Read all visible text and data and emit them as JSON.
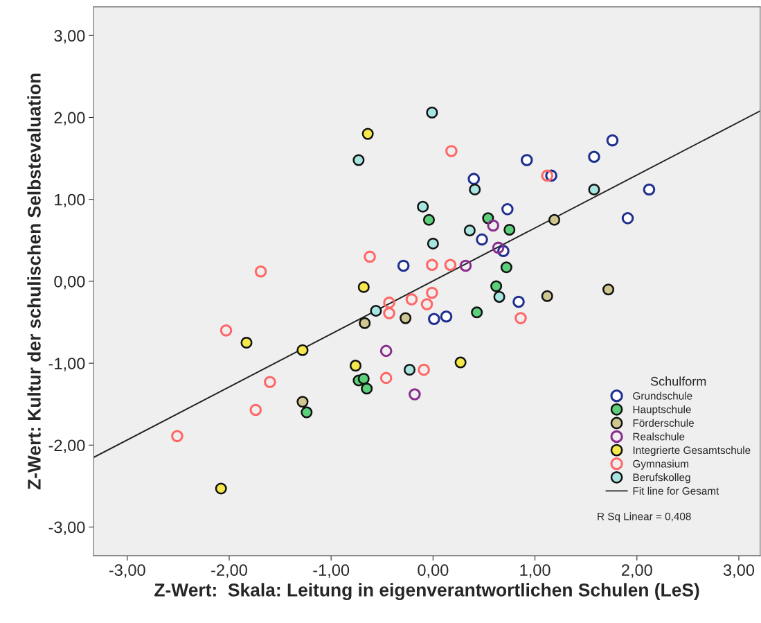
{
  "chart_data": {
    "type": "scatter",
    "xlabel": "Z-Wert:  Skala: Leitung in eigenverantwortlichen Schulen (LeS)",
    "ylabel": "Z-Wert: Kultur der schulischen Selbstevaluation",
    "legend_title": "Schulform",
    "annotations": [
      "R Sq Linear = 0,408"
    ],
    "xlim": [
      -3.33,
      3.21
    ],
    "ylim": [
      -3.35,
      3.35
    ],
    "xticks": [
      {
        "value": -3,
        "label": "-3,00"
      },
      {
        "value": -2,
        "label": "-2,00"
      },
      {
        "value": -1,
        "label": "-1,00"
      },
      {
        "value": 0,
        "label": "0,00"
      },
      {
        "value": 1,
        "label": "1,00"
      },
      {
        "value": 2,
        "label": "2,00"
      },
      {
        "value": 3,
        "label": "3,00"
      }
    ],
    "yticks": [
      {
        "value": -3,
        "label": "-3,00"
      },
      {
        "value": -2,
        "label": "-2,00"
      },
      {
        "value": -1,
        "label": "-1,00"
      },
      {
        "value": 0,
        "label": "0,00"
      },
      {
        "value": 1,
        "label": "1,00"
      },
      {
        "value": 2,
        "label": "2,00"
      },
      {
        "value": 3,
        "label": "3,00"
      }
    ],
    "grid": false,
    "legend": "bottom right",
    "series": [
      {
        "name": "Grundschule",
        "marker": "circle",
        "color": "#1f2f8f",
        "x": [
          0.92,
          0.4,
          1.16,
          1.58,
          1.76,
          2.12,
          1.91,
          0.73,
          0.48,
          0.69,
          -0.29,
          0.84,
          0.01,
          0.13
        ],
        "values": [
          1.48,
          1.25,
          1.29,
          1.52,
          1.72,
          1.12,
          0.77,
          0.88,
          0.51,
          0.37,
          0.19,
          -0.25,
          -0.46,
          -0.43
        ]
      },
      {
        "name": "Hauptschule",
        "marker": "circle",
        "color": "#5ccf7a",
        "x": [
          -0.04,
          0.54,
          0.75,
          0.72,
          0.62,
          0.43,
          -0.73,
          -0.68,
          -0.65,
          -1.24
        ],
        "values": [
          0.75,
          0.77,
          0.63,
          0.17,
          -0.06,
          -0.38,
          -1.21,
          -1.19,
          -1.31,
          -1.6
        ]
      },
      {
        "name": "Förderschule",
        "marker": "circle",
        "color": "#cfc690",
        "x": [
          1.19,
          1.12,
          1.72,
          -0.27,
          -0.67,
          -1.28
        ],
        "values": [
          0.75,
          -0.18,
          -0.1,
          -0.45,
          -0.51,
          -1.47
        ]
      },
      {
        "name": "Realschule",
        "marker": "circle",
        "color": "#8b2d8f",
        "x": [
          0.59,
          0.64,
          0.32,
          -0.46,
          -0.18
        ],
        "values": [
          0.68,
          0.41,
          0.19,
          -0.85,
          -1.38
        ]
      },
      {
        "name": "Integrierte Gesamtschule",
        "marker": "circle",
        "color": "#f5e84a",
        "x": [
          -0.64,
          -0.68,
          -1.83,
          -1.28,
          -0.76,
          0.27,
          -2.08
        ],
        "values": [
          1.8,
          -0.07,
          -0.75,
          -0.84,
          -1.03,
          -0.99,
          -2.53
        ]
      },
      {
        "name": "Gymnasium",
        "marker": "circle",
        "color": "#ff6666",
        "x": [
          -1.69,
          -0.62,
          -0.43,
          -0.43,
          -0.21,
          -0.06,
          -0.01,
          0.17,
          -0.01,
          0.18,
          1.12,
          0.86,
          -2.03,
          -1.6,
          -1.74,
          -2.51,
          -0.46,
          -0.09
        ],
        "values": [
          0.12,
          0.3,
          -0.26,
          -0.39,
          -0.22,
          -0.28,
          0.2,
          0.2,
          -0.14,
          1.59,
          1.29,
          -0.45,
          -0.6,
          -1.23,
          -1.57,
          -1.89,
          -1.18,
          -1.08
        ]
      },
      {
        "name": "Berufskolleg",
        "marker": "circle",
        "color": "#a8e4e0",
        "x": [
          -0.01,
          -0.73,
          -0.1,
          0.0,
          0.36,
          0.41,
          1.58,
          0.65,
          -0.56,
          -0.23
        ],
        "values": [
          2.06,
          1.48,
          0.91,
          0.46,
          0.62,
          1.12,
          1.12,
          -0.19,
          -0.36,
          -1.08
        ]
      },
      {
        "name": "Fit line for Gesamt",
        "type": "line",
        "marker": "none",
        "color": "#222222",
        "x": [
          -3.33,
          3.21
        ],
        "values": [
          -2.15,
          2.08
        ]
      }
    ]
  }
}
